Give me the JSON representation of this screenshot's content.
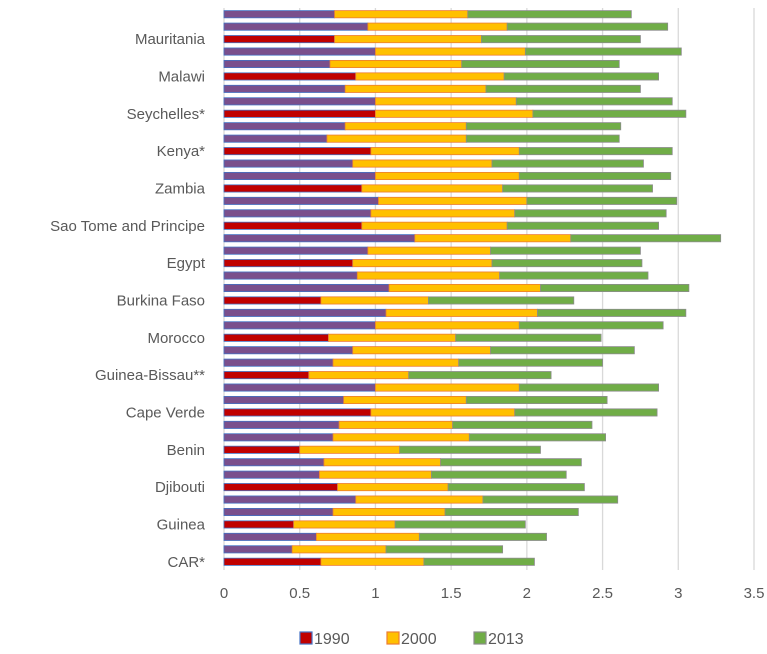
{
  "chart_data": {
    "type": "bar",
    "orientation": "horizontal",
    "stacked": true,
    "title": "",
    "xlabel": "",
    "ylabel": "",
    "xlim": [
      0,
      3.5
    ],
    "x_ticks": [
      "0",
      "0.5",
      "1",
      "1.5",
      "2",
      "2.5",
      "3",
      "3.5"
    ],
    "grid": "vertical",
    "legend_position": "bottom",
    "category_labels_shown": [
      "Mauritania",
      "Malawi",
      "Seychelles*",
      "Kenya*",
      "Zambia",
      "Sao Tome and Principe",
      "Egypt",
      "Burkina Faso",
      "Morocco",
      "Guinea-Bissau**",
      "Cape Verde",
      "Benin",
      "Djibouti",
      "Guinea",
      "CAR*"
    ],
    "categories": [
      "CAR*",
      "",
      "",
      "Guinea",
      "",
      "",
      "Djibouti",
      "",
      "",
      "Benin",
      "",
      "",
      "Cape Verde",
      "",
      "",
      "Guinea-Bissau**",
      "",
      "",
      "Morocco",
      "",
      "",
      "Burkina Faso",
      "",
      "",
      "Egypt",
      "",
      "",
      "Sao Tome and Principe",
      "",
      "",
      "Zambia",
      "",
      "",
      "Kenya*",
      "",
      "",
      "Seychelles*",
      "",
      "",
      "Malawi",
      "",
      "",
      "Mauritania",
      "",
      ""
    ],
    "series": [
      {
        "name": "1990",
        "color": "#c00000",
        "values": [
          0.64,
          0.45,
          0.61,
          0.46,
          0.72,
          0.87,
          0.75,
          0.63,
          0.66,
          0.5,
          0.72,
          0.76,
          0.97,
          0.79,
          1.0,
          0.56,
          0.72,
          0.85,
          0.69,
          1.0,
          1.07,
          0.64,
          1.09,
          0.88,
          0.85,
          0.95,
          1.26,
          0.91,
          0.97,
          1.02,
          0.91,
          1.0,
          0.85,
          0.97,
          0.68,
          0.8,
          1.0,
          1.0,
          0.8,
          0.87,
          0.7,
          1.0,
          0.73,
          0.95,
          0.73
        ]
      },
      {
        "name": "2000",
        "color": "#ffc000",
        "values": [
          0.68,
          0.62,
          0.68,
          0.67,
          0.74,
          0.84,
          0.73,
          0.74,
          0.77,
          0.66,
          0.9,
          0.75,
          0.95,
          0.81,
          0.95,
          0.66,
          0.83,
          0.91,
          0.84,
          0.95,
          1.0,
          0.71,
          1.0,
          0.94,
          0.92,
          0.81,
          1.03,
          0.96,
          0.95,
          0.98,
          0.93,
          0.95,
          0.92,
          0.98,
          0.92,
          0.8,
          1.04,
          0.93,
          0.93,
          0.98,
          0.87,
          0.99,
          0.97,
          0.92,
          0.88
        ]
      },
      {
        "name": "2013",
        "color": "#70ad47",
        "values": [
          0.73,
          0.77,
          0.84,
          0.86,
          0.88,
          0.89,
          0.9,
          0.89,
          0.93,
          0.93,
          0.9,
          0.92,
          0.94,
          0.93,
          0.92,
          0.94,
          0.95,
          0.95,
          0.96,
          0.95,
          0.98,
          0.96,
          0.98,
          0.98,
          0.99,
          0.99,
          0.99,
          1.0,
          1.0,
          0.99,
          0.99,
          1.0,
          1.0,
          1.01,
          1.01,
          1.02,
          1.01,
          1.03,
          1.02,
          1.02,
          1.04,
          1.03,
          1.05,
          1.06,
          1.08
        ]
      }
    ]
  }
}
